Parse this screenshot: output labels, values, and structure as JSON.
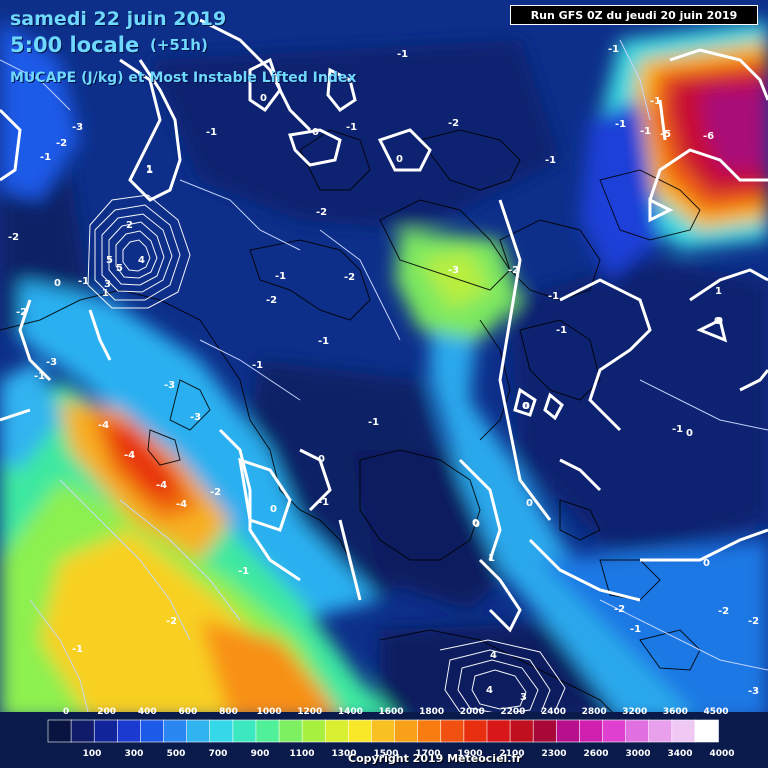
{
  "header": {
    "date": "samedi 22 juin 2019",
    "time": "5:00 locale",
    "lead": "(+51h)",
    "subtitle": "MUCAPE (J/kg) et Most Instable Lifted Index",
    "run": "Run GFS 0Z du jeudi 20 juin 2019"
  },
  "footer": {
    "copyright": "Copyright 2019 Meteociel.fr"
  },
  "colorbar": {
    "top_labels": [
      "0",
      "200",
      "400",
      "600",
      "800",
      "1000",
      "1200",
      "1400",
      "1600",
      "1800",
      "2000",
      "2200",
      "2400",
      "2800",
      "3200",
      "3600",
      "4500"
    ],
    "bottom_labels": [
      "100",
      "300",
      "500",
      "700",
      "900",
      "1100",
      "1300",
      "1500",
      "1700",
      "1900",
      "2100",
      "2300",
      "2600",
      "3000",
      "3400",
      "4000"
    ],
    "colors": [
      "#0a1440",
      "#101c6a",
      "#12249a",
      "#1a3ad0",
      "#1e5ae8",
      "#2a86f0",
      "#30b4f0",
      "#34d8e8",
      "#3ce8c0",
      "#50f098",
      "#7cf060",
      "#a8f040",
      "#d8f030",
      "#f8e828",
      "#f8c020",
      "#f8a018",
      "#f87c10",
      "#f05010",
      "#e83010",
      "#d81818",
      "#c01020",
      "#a80838",
      "#b8108c",
      "#d020b0",
      "#e040d0",
      "#e070e0",
      "#e8a0ec",
      "#f0c8f4",
      "#ffffff"
    ]
  },
  "lifted_index_labels": [
    "-3",
    "-2",
    "-1",
    "-1",
    "-2",
    "-1",
    "0",
    "-1",
    "0",
    "1",
    "-1",
    "0",
    "-1",
    "-1",
    "-1",
    "-1",
    "-1",
    "-5",
    "-6",
    "-2",
    "-1",
    "2",
    "1",
    "5",
    "3",
    "4",
    "5",
    "0",
    "-1",
    "1",
    "-2",
    "-2",
    "-1",
    "-2",
    "-1",
    "-2",
    "-3",
    "-1",
    "-2",
    "1",
    "0",
    "-1",
    "-1",
    "0",
    "-1",
    "-3",
    "-3",
    "-4",
    "-4",
    "-4",
    "-4",
    "-1",
    "-2",
    "-1",
    "0",
    "0",
    "0",
    "-1",
    "0",
    "-1",
    "0",
    "1",
    "0",
    "0",
    "0",
    "0",
    "-3",
    "-2",
    "-2",
    "-1",
    "-2",
    "-2",
    "2",
    "4",
    "4",
    "3",
    "-3",
    "2",
    "-1"
  ],
  "map_layers": [
    "ocean-fill",
    "cape-fields",
    "coastlines",
    "li-contours",
    "colorbar"
  ]
}
